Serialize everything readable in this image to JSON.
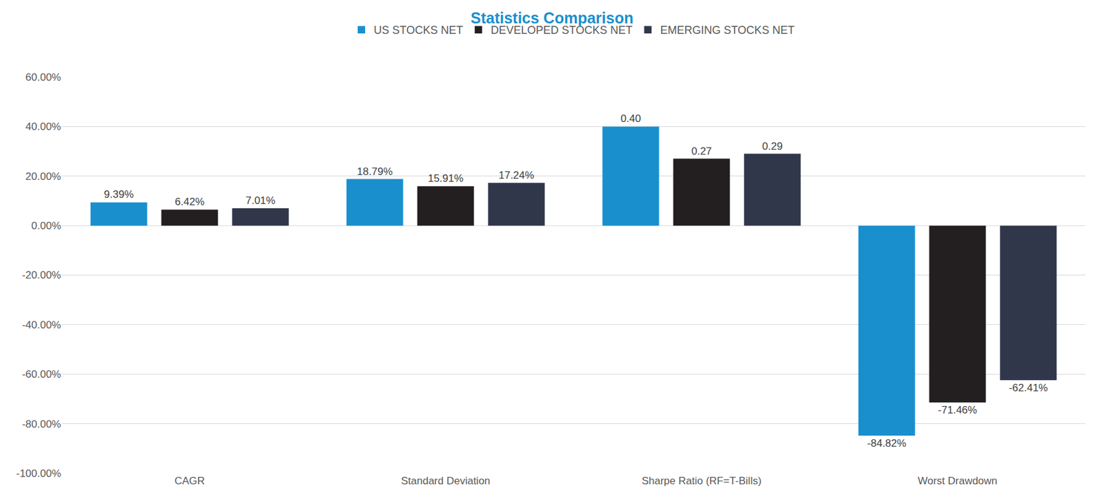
{
  "chart_data": {
    "type": "bar",
    "title": "Statistics Comparison",
    "categories": [
      "CAGR",
      "Standard Deviation",
      "Sharpe Ratio (RF=T-Bills)",
      "Worst Drawdown"
    ],
    "series": [
      {
        "name": "US STOCKS NET",
        "color": "#1a8fce",
        "values": [
          0.0939,
          0.1879,
          0.4,
          -0.8482
        ],
        "value_labels": [
          "9.39%",
          "18.79%",
          "0.40",
          "-84.82%"
        ]
      },
      {
        "name": "DEVELOPED STOCKS NET",
        "color": "#231f20",
        "values": [
          0.0642,
          0.1591,
          0.27,
          -0.7146
        ],
        "value_labels": [
          "6.42%",
          "15.91%",
          "0.27",
          "-71.46%"
        ]
      },
      {
        "name": "EMERGING STOCKS NET",
        "color": "#31374b",
        "values": [
          0.0701,
          0.1724,
          0.29,
          -0.6241
        ],
        "value_labels": [
          "7.01%",
          "17.24%",
          "0.29",
          "-62.41%"
        ]
      }
    ],
    "ylim": [
      -1.0,
      0.6
    ],
    "yticks": [
      {
        "value": -1.0,
        "label": "-100.00%"
      },
      {
        "value": -0.8,
        "label": "-80.00%"
      },
      {
        "value": -0.6,
        "label": "-60.00%"
      },
      {
        "value": -0.4,
        "label": "-40.00%"
      },
      {
        "value": -0.2,
        "label": "-20.00%"
      },
      {
        "value": 0,
        "label": "0.00%"
      },
      {
        "value": 0.2,
        "label": "20.00%"
      },
      {
        "value": 0.4,
        "label": "40.00%"
      },
      {
        "value": 0.6,
        "label": "60.00%"
      }
    ],
    "grid": true,
    "legend": "top",
    "data_labels": true
  }
}
